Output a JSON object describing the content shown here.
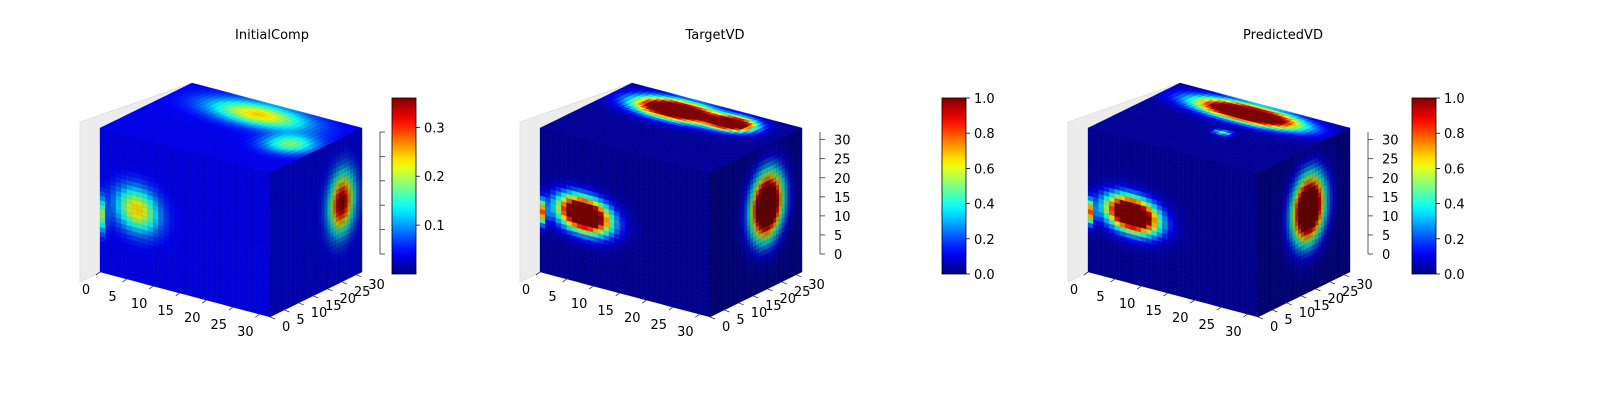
{
  "chart_data": [
    {
      "type": "heatmap",
      "subtype": "3d-voxel-cube",
      "title": "InitialComp",
      "x": {
        "lim": [
          0,
          32
        ],
        "ticks": [
          "0",
          "5",
          "10",
          "15",
          "20",
          "25",
          "30"
        ]
      },
      "y": {
        "lim": [
          0,
          32
        ],
        "ticks": [
          "0",
          "5",
          "10",
          "15",
          "20",
          "25",
          "30"
        ]
      },
      "z": {
        "lim": [
          0,
          32
        ],
        "ticks": [],
        "tick_marks": 6
      },
      "colormap": "jet",
      "clim": [
        0.0,
        0.36
      ],
      "colorbar": {
        "ticks": [
          "0.1",
          "0.2",
          "0.3"
        ],
        "values": [
          0.1,
          0.2,
          0.3
        ]
      },
      "blobs": {
        "front": [
          {
            "u": 0.22,
            "v": 0.5,
            "ru": 0.15,
            "rv": 0.18,
            "peak": 0.2
          },
          {
            "u": 0.0,
            "v": 0.4,
            "ru": 0.04,
            "rv": 0.14,
            "peak": 0.18
          }
        ],
        "side": [
          {
            "u": 0.78,
            "v": 0.55,
            "ru": 0.16,
            "rv": 0.24,
            "peak": 0.33
          }
        ],
        "top": [
          {
            "u": 0.5,
            "v": 0.8,
            "ru": 0.33,
            "rv": 0.22,
            "peak": 0.2
          },
          {
            "u": 0.85,
            "v": 0.5,
            "ru": 0.16,
            "rv": 0.2,
            "peak": 0.14
          }
        ]
      },
      "background": 0.04
    },
    {
      "type": "heatmap",
      "subtype": "3d-voxel-cube",
      "title": "TargetVD",
      "x": {
        "lim": [
          0,
          32
        ],
        "ticks": [
          "0",
          "5",
          "10",
          "15",
          "20",
          "25",
          "30"
        ]
      },
      "y": {
        "lim": [
          0,
          32
        ],
        "ticks": [
          "0",
          "5",
          "10",
          "15",
          "20",
          "25",
          "30"
        ]
      },
      "z": {
        "lim": [
          0,
          32
        ],
        "ticks": [
          "0",
          "5",
          "10",
          "15",
          "20",
          "25",
          "30"
        ]
      },
      "colormap": "jet",
      "clim": [
        0.0,
        1.0
      ],
      "colorbar": {
        "ticks": [
          "0.0",
          "0.2",
          "0.4",
          "0.6",
          "0.8",
          "1.0"
        ],
        "values": [
          0.0,
          0.2,
          0.4,
          0.6,
          0.8,
          1.0
        ]
      },
      "blobs": {
        "front": [
          {
            "u": 0.26,
            "v": 0.48,
            "ru": 0.18,
            "rv": 0.14,
            "peak": 1.6
          },
          {
            "u": 0.0,
            "v": 0.42,
            "ru": 0.04,
            "rv": 0.1,
            "peak": 0.9
          }
        ],
        "side": [
          {
            "u": 0.62,
            "v": 0.58,
            "ru": 0.2,
            "rv": 0.26,
            "peak": 1.6
          }
        ],
        "top": [
          {
            "u": 0.38,
            "v": 0.78,
            "ru": 0.26,
            "rv": 0.18,
            "peak": 1.7
          },
          {
            "u": 0.7,
            "v": 0.8,
            "ru": 0.14,
            "rv": 0.14,
            "peak": 1.5
          }
        ]
      },
      "background": 0.03
    },
    {
      "type": "heatmap",
      "subtype": "3d-voxel-cube",
      "title": "PredictedVD",
      "x": {
        "lim": [
          0,
          32
        ],
        "ticks": [
          "0",
          "5",
          "10",
          "15",
          "20",
          "25",
          "30"
        ]
      },
      "y": {
        "lim": [
          0,
          32
        ],
        "ticks": [
          "0",
          "5",
          "10",
          "15",
          "20",
          "25",
          "30"
        ]
      },
      "z": {
        "lim": [
          0,
          32
        ],
        "ticks": [
          "0",
          "5",
          "10",
          "15",
          "20",
          "25",
          "30"
        ]
      },
      "colormap": "jet",
      "clim": [
        0.0,
        1.0
      ],
      "colorbar": {
        "ticks": [
          "0.0",
          "0.2",
          "0.4",
          "0.6",
          "0.8",
          "1.0"
        ],
        "values": [
          0.0,
          0.2,
          0.4,
          0.6,
          0.8,
          1.0
        ]
      },
      "blobs": {
        "front": [
          {
            "u": 0.26,
            "v": 0.48,
            "ru": 0.18,
            "rv": 0.14,
            "peak": 1.6
          },
          {
            "u": 0.0,
            "v": 0.42,
            "ru": 0.04,
            "rv": 0.1,
            "peak": 0.9
          }
        ],
        "side": [
          {
            "u": 0.55,
            "v": 0.58,
            "ru": 0.2,
            "rv": 0.26,
            "peak": 1.6
          }
        ],
        "top": [
          {
            "u": 0.5,
            "v": 0.82,
            "ru": 0.34,
            "rv": 0.16,
            "peak": 1.7
          },
          {
            "u": 0.55,
            "v": 0.45,
            "ru": 0.06,
            "rv": 0.05,
            "peak": 0.45
          }
        ]
      },
      "background": 0.03
    }
  ]
}
